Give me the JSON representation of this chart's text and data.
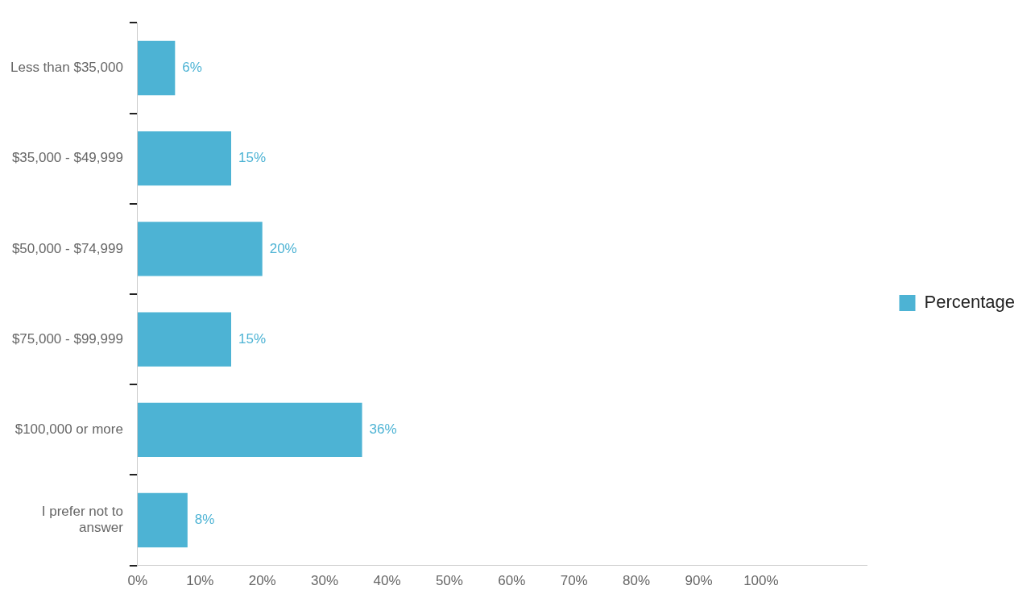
{
  "chart_data": {
    "type": "bar",
    "orientation": "horizontal",
    "categories": [
      "Less than $35,000",
      "$35,000 - $49,999",
      "$50,000 - $74,999",
      "$75,000 - $99,999",
      "$100,000 or more",
      "I prefer not to answer"
    ],
    "series": [
      {
        "name": "Percentage",
        "color": "#4db3d4",
        "values": [
          6,
          15,
          20,
          15,
          36,
          8
        ],
        "value_labels": [
          "6%",
          "15%",
          "20%",
          "15%",
          "36%",
          "8%"
        ]
      }
    ],
    "xlim": [
      0,
      117
    ],
    "xticks": [
      {
        "value": 0,
        "label": "0%"
      },
      {
        "value": 10,
        "label": "10%"
      },
      {
        "value": 20,
        "label": "20%"
      },
      {
        "value": 30,
        "label": "30%"
      },
      {
        "value": 40,
        "label": "40%"
      },
      {
        "value": 50,
        "label": "50%"
      },
      {
        "value": 60,
        "label": "60%"
      },
      {
        "value": 70,
        "label": "70%"
      },
      {
        "value": 80,
        "label": "80%"
      },
      {
        "value": 90,
        "label": "90%"
      },
      {
        "value": 100,
        "label": "100%"
      }
    ],
    "grid": false,
    "legend": "right"
  }
}
